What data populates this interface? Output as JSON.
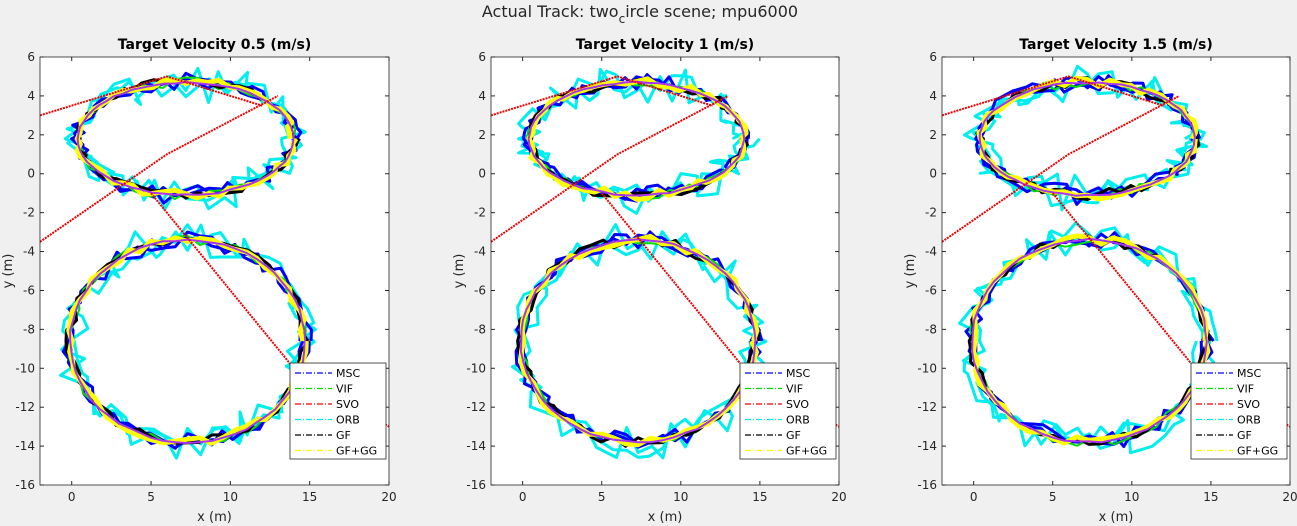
{
  "figure": {
    "suptitle_main": "Actual Track: two",
    "suptitle_sub": "c",
    "suptitle_rest": "ircle scene; mpu6000"
  },
  "legend_entries": [
    "MSC",
    "VIF",
    "SVO",
    "ORB",
    "GF",
    "GF+GG"
  ],
  "colors": {
    "MSC": "#0000ff",
    "VIF": "#00dd00",
    "SVO": "#ee0000",
    "ORB": "#00eeee",
    "GF": "#000000",
    "GF+GG": "#ffff00",
    "ref": "#aa33ee"
  },
  "chart_data": [
    {
      "type": "line",
      "title": "Target Velocity 0.5 (m/s)",
      "xlabel": "x (m)",
      "ylabel": "y (m)",
      "xlim": [
        -2,
        20
      ],
      "ylim": [
        -16,
        6
      ],
      "xticks": [
        0,
        5,
        10,
        15,
        20
      ],
      "yticks": [
        6,
        4,
        2,
        0,
        -2,
        -4,
        -6,
        -8,
        -10,
        -12,
        -14,
        -16
      ],
      "legend_position": "bottom-right",
      "series": [
        {
          "name": "MSC",
          "values": []
        },
        {
          "name": "VIF",
          "values": []
        },
        {
          "name": "SVO",
          "values": []
        },
        {
          "name": "ORB",
          "values": []
        },
        {
          "name": "GF",
          "values": []
        },
        {
          "name": "GF+GG",
          "values": []
        }
      ]
    },
    {
      "type": "line",
      "title": "Target Velocity 1 (m/s)",
      "xlabel": "x (m)",
      "ylabel": "y (m)",
      "xlim": [
        -2,
        20
      ],
      "ylim": [
        -16,
        6
      ],
      "xticks": [
        0,
        5,
        10,
        15,
        20
      ],
      "yticks": [
        6,
        4,
        2,
        0,
        -2,
        -4,
        -6,
        -8,
        -10,
        -12,
        -14,
        -16
      ],
      "legend_position": "bottom-right",
      "series": [
        {
          "name": "MSC",
          "values": []
        },
        {
          "name": "VIF",
          "values": []
        },
        {
          "name": "SVO",
          "values": []
        },
        {
          "name": "ORB",
          "values": []
        },
        {
          "name": "GF",
          "values": []
        },
        {
          "name": "GF+GG",
          "values": []
        }
      ]
    },
    {
      "type": "line",
      "title": "Target Velocity 1.5 (m/s)",
      "xlabel": "x (m)",
      "ylabel": "y (m)",
      "xlim": [
        -2,
        20
      ],
      "ylim": [
        -16,
        6
      ],
      "xticks": [
        0,
        5,
        10,
        15,
        20
      ],
      "yticks": [
        6,
        4,
        2,
        0,
        -2,
        -4,
        -6,
        -8,
        -10,
        -12,
        -14,
        -16
      ],
      "legend_position": "bottom-right",
      "series": [
        {
          "name": "MSC",
          "values": []
        },
        {
          "name": "VIF",
          "values": []
        },
        {
          "name": "SVO",
          "values": []
        },
        {
          "name": "ORB",
          "values": []
        },
        {
          "name": "GF",
          "values": []
        },
        {
          "name": "GF+GG",
          "values": []
        }
      ]
    }
  ]
}
